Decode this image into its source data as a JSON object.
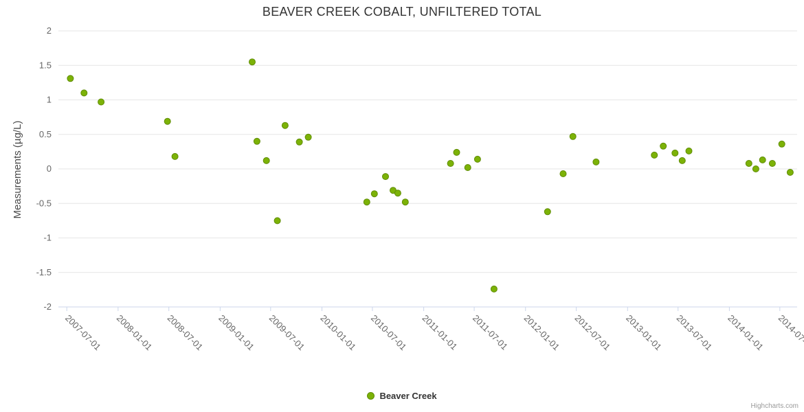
{
  "chart": {
    "title": "BEAVER CREEK COBALT, UNFILTERED TOTAL",
    "y_axis_title": "Measurements (µg/L)",
    "legend_label": "Beaver Creek",
    "credit": "Highcharts.com"
  },
  "colors": {
    "point_fill": "#7cb207",
    "point_border": "#5f8c06",
    "gridline": "#e6e6e6",
    "axis_line": "#ccd6eb",
    "tick_label": "#666666"
  },
  "chart_data": {
    "type": "scatter",
    "title": "BEAVER CREEK COBALT, UNFILTERED TOTAL",
    "xlabel": "",
    "ylabel": "Measurements (µg/L)",
    "ylim": [
      -2,
      2
    ],
    "y_ticks": [
      2,
      1.5,
      1,
      0.5,
      0,
      -0.5,
      -1,
      -1.5,
      -2
    ],
    "x_ticks": [
      "2007-07-01",
      "2008-01-01",
      "2008-07-01",
      "2009-01-01",
      "2009-07-01",
      "2010-01-01",
      "2010-07-01",
      "2011-01-01",
      "2011-07-01",
      "2012-01-01",
      "2012-07-01",
      "2013-01-01",
      "2013-07-01",
      "2014-01-01",
      "2014-07-01"
    ],
    "x_range": [
      "2007-06-01",
      "2014-09-01"
    ],
    "grid": "horizontal",
    "legend_position": "bottom-center",
    "series": [
      {
        "name": "Beaver Creek",
        "color": "#7cb207",
        "border": "#5f8c06",
        "points": [
          [
            "2007-07-14",
            1.31
          ],
          [
            "2007-09-01",
            1.1
          ],
          [
            "2007-11-01",
            0.97
          ],
          [
            "2008-06-26",
            0.69
          ],
          [
            "2008-07-23",
            0.18
          ],
          [
            "2009-04-26",
            1.55
          ],
          [
            "2009-05-13",
            0.4
          ],
          [
            "2009-06-16",
            0.12
          ],
          [
            "2009-07-25",
            -0.75
          ],
          [
            "2009-08-22",
            0.63
          ],
          [
            "2009-10-12",
            0.39
          ],
          [
            "2009-11-13",
            0.46
          ],
          [
            "2010-06-11",
            -0.48
          ],
          [
            "2010-07-08",
            -0.36
          ],
          [
            "2010-08-17",
            -0.11
          ],
          [
            "2010-09-13",
            -0.31
          ],
          [
            "2010-09-30",
            -0.35
          ],
          [
            "2010-10-27",
            -0.48
          ],
          [
            "2011-04-07",
            0.08
          ],
          [
            "2011-04-29",
            0.24
          ],
          [
            "2011-06-08",
            0.02
          ],
          [
            "2011-07-13",
            0.14
          ],
          [
            "2011-09-10",
            -1.74
          ],
          [
            "2012-03-20",
            -0.62
          ],
          [
            "2012-05-15",
            -0.07
          ],
          [
            "2012-06-19",
            0.47
          ],
          [
            "2012-09-10",
            0.1
          ],
          [
            "2013-04-07",
            0.2
          ],
          [
            "2013-05-09",
            0.33
          ],
          [
            "2013-06-20",
            0.23
          ],
          [
            "2013-07-16",
            0.12
          ],
          [
            "2013-08-09",
            0.26
          ],
          [
            "2014-03-12",
            0.08
          ],
          [
            "2014-04-06",
            0.0
          ],
          [
            "2014-04-30",
            0.13
          ],
          [
            "2014-06-04",
            0.08
          ],
          [
            "2014-07-08",
            0.36
          ],
          [
            "2014-08-07",
            -0.05
          ]
        ]
      }
    ]
  }
}
